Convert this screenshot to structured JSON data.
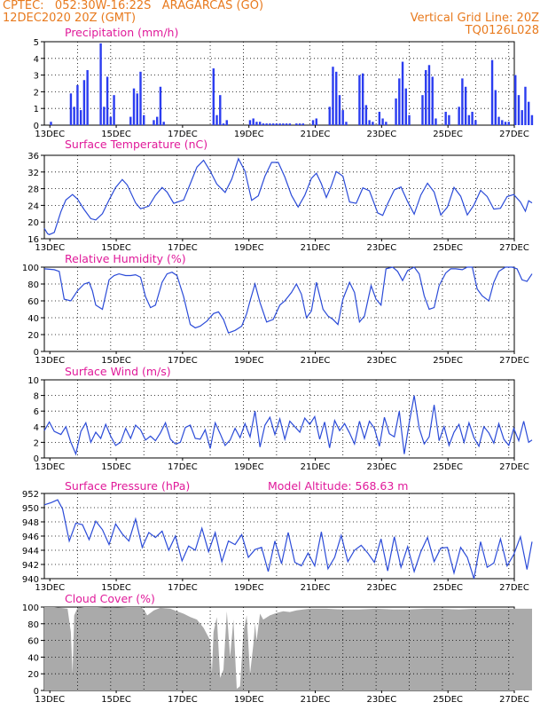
{
  "header": {
    "line1_left": "CPTEC:   052:30W-16:22S   ARAGARCAS (GO)",
    "line2_left": "12DEC2020 20Z (GMT)",
    "line1_right": "Vertical Grid Line: 20Z",
    "line2_right": "TQ0126L028",
    "text_color": "#e87a1e",
    "title_color": "#e01a9a",
    "line_color": "#2b4bd8",
    "bar_color": "#2b3df0",
    "cloud_color": "#aaaaaa"
  },
  "x_axis": {
    "range": [
      "2020-12-12 20Z",
      "2020-12-27 00Z"
    ],
    "ticks": [
      "13DEC",
      "15DEC",
      "17DEC",
      "19DEC",
      "21DEC",
      "23DEC",
      "25DEC",
      "27DEC"
    ]
  },
  "chart_data": [
    {
      "type": "bar",
      "title": "Precipitation (mm/h)",
      "ylim": [
        0,
        5
      ],
      "yticks": [
        "0",
        "1",
        "2",
        "3",
        "4",
        "5"
      ],
      "x_days": [
        0.2,
        0.8,
        0.9,
        1.0,
        1.1,
        1.2,
        1.3,
        1.7,
        1.8,
        1.9,
        2.0,
        2.1,
        2.6,
        2.7,
        2.8,
        2.9,
        3.0,
        3.3,
        3.4,
        3.5,
        3.6,
        5.1,
        5.2,
        5.3,
        5.4,
        5.5,
        6.2,
        6.3,
        6.4,
        6.5,
        6.6,
        6.7,
        6.8,
        6.9,
        7.0,
        7.1,
        7.2,
        7.3,
        7.4,
        7.6,
        7.7,
        7.8,
        8.1,
        8.2,
        8.6,
        8.7,
        8.8,
        8.9,
        9.0,
        9.1,
        9.5,
        9.6,
        9.7,
        9.8,
        9.9,
        10.1,
        10.2,
        10.3,
        10.6,
        10.7,
        10.8,
        10.9,
        11.0,
        11.4,
        11.5,
        11.6,
        11.7,
        11.8,
        12.1,
        12.2,
        12.5,
        12.6,
        12.7,
        12.8,
        12.9,
        13.0,
        13.5,
        13.6,
        13.7,
        13.8,
        13.9,
        14.0,
        14.2,
        14.3,
        14.4,
        14.5,
        14.6,
        14.7
      ],
      "values": [
        0.2,
        1.9,
        1.1,
        2.4,
        0.9,
        2.7,
        3.3,
        4.9,
        1.1,
        2.9,
        0.5,
        1.8,
        0.5,
        2.2,
        1.9,
        3.2,
        0.6,
        0.3,
        0.5,
        2.3,
        0.2,
        3.4,
        0.6,
        1.8,
        0.1,
        0.3,
        0.3,
        0.4,
        0.2,
        0.2,
        0.1,
        0.1,
        0.1,
        0.1,
        0.1,
        0.1,
        0.1,
        0.1,
        0.1,
        0.1,
        0.1,
        0.1,
        0.3,
        0.4,
        1.1,
        3.5,
        3.2,
        1.8,
        0.9,
        0.2,
        3.0,
        3.1,
        1.2,
        0.3,
        0.2,
        0.8,
        0.4,
        0.2,
        1.6,
        2.8,
        3.8,
        2.2,
        0.6,
        1.8,
        3.3,
        3.6,
        2.9,
        0.4,
        0.8,
        0.6,
        1.1,
        2.8,
        2.3,
        0.6,
        0.8,
        0.3,
        3.9,
        2.1,
        0.5,
        0.3,
        0.2,
        0.2,
        3.0,
        1.8,
        0.9,
        2.3,
        1.4,
        0.6
      ]
    },
    {
      "type": "line",
      "title": "Surface Temperature (nC)",
      "ylim": [
        16,
        36
      ],
      "yticks": [
        "16",
        "20",
        "24",
        "28",
        "32",
        "36"
      ],
      "x_days": [
        0.0,
        0.1,
        0.15,
        0.3,
        0.5,
        0.65,
        0.85,
        1.0,
        1.2,
        1.4,
        1.55,
        1.75,
        1.95,
        2.15,
        2.35,
        2.5,
        2.75,
        2.9,
        3.15,
        3.35,
        3.55,
        3.7,
        3.9,
        4.2,
        4.4,
        4.6,
        4.8,
        5.0,
        5.2,
        5.45,
        5.65,
        5.85,
        6.05,
        6.25,
        6.45,
        6.65,
        6.85,
        7.05,
        7.25,
        7.45,
        7.65,
        7.85,
        8.05,
        8.2,
        8.35,
        8.5,
        8.65,
        8.8,
        9.0,
        9.2,
        9.4,
        9.6,
        9.8,
        10.05,
        10.2,
        10.35,
        10.55,
        10.75,
        10.95,
        11.15,
        11.35,
        11.55,
        11.75,
        11.95,
        12.15,
        12.35,
        12.55,
        12.75,
        12.95,
        13.15,
        13.35,
        13.55,
        13.75,
        13.95,
        14.15,
        14.35,
        14.5,
        14.6,
        14.7
      ],
      "values": [
        18.5,
        17.2,
        17,
        17.5,
        22.5,
        25.3,
        26.6,
        25.5,
        23,
        20.8,
        20.5,
        22,
        25.3,
        28.3,
        30.2,
        28.9,
        24.6,
        23.2,
        23.8,
        26.4,
        28.3,
        27.2,
        24.5,
        25.3,
        29.2,
        33.2,
        34.8,
        32.2,
        29.1,
        27.1,
        30.3,
        35.2,
        32.2,
        25.2,
        26.3,
        31,
        34.3,
        34.3,
        30.8,
        26.4,
        23.6,
        26.4,
        30.5,
        31.7,
        29.2,
        25.9,
        28.7,
        32.1,
        31,
        24.8,
        24.5,
        28.2,
        27.5,
        22.2,
        21.6,
        24.4,
        27.7,
        28.4,
        24.9,
        21.9,
        26.5,
        29.3,
        27.2,
        21.7,
        23.6,
        28.3,
        26.2,
        21.7,
        24.1,
        27.6,
        26.1,
        23.1,
        23.3,
        26.1,
        26.6,
        24.8,
        22.6,
        25.1,
        24.6
      ]
    },
    {
      "type": "line",
      "title": "Relative Humidity (%)",
      "ylim": [
        0,
        100
      ],
      "yticks": [
        "0",
        "20",
        "40",
        "60",
        "80",
        "100"
      ],
      "x_days": [
        0.0,
        0.3,
        0.45,
        0.6,
        0.8,
        1.0,
        1.2,
        1.35,
        1.45,
        1.55,
        1.75,
        1.95,
        2.1,
        2.25,
        2.45,
        2.6,
        2.75,
        2.9,
        3.05,
        3.2,
        3.35,
        3.55,
        3.7,
        3.85,
        4.0,
        4.2,
        4.4,
        4.55,
        4.7,
        4.9,
        5.1,
        5.25,
        5.4,
        5.55,
        5.75,
        5.95,
        6.1,
        6.2,
        6.35,
        6.5,
        6.7,
        6.9,
        7.1,
        7.25,
        7.45,
        7.6,
        7.75,
        7.9,
        8.05,
        8.2,
        8.4,
        8.55,
        8.7,
        8.85,
        9.0,
        9.2,
        9.35,
        9.5,
        9.65,
        9.85,
        10.0,
        10.15,
        10.3,
        10.5,
        10.65,
        10.8,
        10.95,
        11.15,
        11.3,
        11.45,
        11.6,
        11.75,
        11.9,
        12.1,
        12.25,
        12.4,
        12.6,
        12.75,
        12.9,
        13.05,
        13.2,
        13.4,
        13.55,
        13.7,
        13.9,
        14.1,
        14.25,
        14.4,
        14.55,
        14.7
      ],
      "values": [
        98,
        97,
        95,
        62,
        60,
        72,
        80,
        82,
        72,
        55,
        50,
        85,
        90,
        92,
        90,
        90,
        91,
        88,
        65,
        52,
        55,
        82,
        92,
        94,
        90,
        65,
        32,
        28,
        30,
        36,
        45,
        47,
        38,
        22,
        25,
        30,
        45,
        60,
        80,
        58,
        35,
        38,
        55,
        60,
        70,
        80,
        68,
        40,
        48,
        82,
        50,
        42,
        38,
        32,
        62,
        82,
        70,
        35,
        42,
        78,
        62,
        55,
        98,
        100,
        95,
        84,
        96,
        100,
        92,
        66,
        50,
        52,
        78,
        93,
        98,
        98,
        97,
        100,
        100,
        74,
        66,
        60,
        82,
        95,
        100,
        100,
        98,
        85,
        83,
        92
      ]
    },
    {
      "type": "line",
      "title": "Surface Wind (m/s)",
      "ylim": [
        0,
        10
      ],
      "yticks": [
        "0",
        "2",
        "4",
        "6",
        "8",
        "10"
      ],
      "x_days": [
        0.0,
        0.15,
        0.3,
        0.5,
        0.65,
        0.8,
        0.95,
        1.1,
        1.25,
        1.4,
        1.55,
        1.7,
        1.85,
        2.0,
        2.15,
        2.3,
        2.45,
        2.6,
        2.75,
        2.9,
        3.05,
        3.2,
        3.35,
        3.5,
        3.65,
        3.8,
        3.95,
        4.1,
        4.25,
        4.4,
        4.55,
        4.7,
        4.85,
        5.0,
        5.15,
        5.3,
        5.45,
        5.6,
        5.75,
        5.9,
        6.05,
        6.2,
        6.35,
        6.5,
        6.65,
        6.8,
        6.95,
        7.1,
        7.25,
        7.4,
        7.55,
        7.7,
        7.85,
        8.0,
        8.15,
        8.3,
        8.45,
        8.6,
        8.75,
        8.9,
        9.05,
        9.2,
        9.35,
        9.5,
        9.65,
        9.8,
        9.95,
        10.1,
        10.25,
        10.4,
        10.55,
        10.7,
        10.85,
        11.0,
        11.15,
        11.3,
        11.45,
        11.6,
        11.75,
        11.9,
        12.05,
        12.2,
        12.35,
        12.5,
        12.65,
        12.8,
        12.95,
        13.1,
        13.25,
        13.4,
        13.55,
        13.7,
        13.85,
        14.0,
        14.15,
        14.3,
        14.45,
        14.6,
        14.7
      ],
      "values": [
        3.5,
        4.6,
        3.4,
        3.0,
        4.0,
        2.0,
        0.5,
        3.4,
        4.5,
        2.0,
        3.3,
        2.5,
        4.3,
        2.8,
        1.6,
        2.0,
        3.8,
        2.5,
        4.2,
        3.6,
        2.3,
        2.8,
        2.2,
        3.2,
        4.5,
        2.4,
        1.8,
        2.0,
        3.9,
        4.2,
        2.5,
        2.4,
        3.6,
        1.2,
        4.5,
        3.1,
        1.6,
        2.3,
        3.8,
        2.6,
        4.4,
        2.7,
        6.0,
        1.4,
        4.2,
        5.2,
        3.0,
        5.0,
        2.4,
        4.7,
        4.0,
        3.3,
        5.1,
        4.3,
        5.3,
        2.4,
        4.6,
        1.3,
        4.8,
        3.5,
        4.4,
        3.2,
        1.8,
        4.7,
        2.5,
        4.7,
        3.8,
        1.5,
        5.2,
        3.1,
        2.7,
        6.0,
        0.5,
        4.5,
        8.0,
        3.8,
        1.8,
        2.7,
        6.8,
        2.2,
        4.0,
        1.6,
        3.3,
        4.3,
        2.0,
        4.5,
        2.6,
        1.5,
        4.0,
        3.2,
        1.9,
        4.4,
        2.4,
        1.6,
        3.8,
        2.2,
        4.7,
        2.0,
        2.3
      ]
    },
    {
      "type": "line",
      "title": "Surface Pressure (hPa)",
      "annotation": "Model Altitude: 568.63 m",
      "ylim": [
        940,
        952
      ],
      "yticks": [
        "940",
        "942",
        "944",
        "946",
        "948",
        "950",
        "952"
      ],
      "x_days": [
        0.0,
        0.2,
        0.4,
        0.55,
        0.75,
        0.95,
        1.15,
        1.35,
        1.55,
        1.75,
        1.95,
        2.15,
        2.35,
        2.55,
        2.75,
        2.95,
        3.15,
        3.35,
        3.55,
        3.75,
        3.95,
        4.15,
        4.35,
        4.55,
        4.75,
        4.95,
        5.15,
        5.35,
        5.55,
        5.75,
        5.95,
        6.15,
        6.35,
        6.55,
        6.75,
        6.95,
        7.15,
        7.35,
        7.55,
        7.75,
        7.95,
        8.15,
        8.35,
        8.55,
        8.75,
        8.95,
        9.15,
        9.35,
        9.55,
        9.75,
        9.95,
        10.15,
        10.35,
        10.55,
        10.75,
        10.95,
        11.15,
        11.35,
        11.55,
        11.75,
        11.95,
        12.15,
        12.35,
        12.55,
        12.75,
        12.95,
        13.15,
        13.35,
        13.55,
        13.75,
        13.95,
        14.15,
        14.35,
        14.55,
        14.7
      ],
      "values": [
        950.4,
        950.7,
        951.1,
        949.8,
        945.3,
        947.8,
        947.6,
        945.5,
        948.1,
        946.9,
        944.8,
        947.7,
        946.3,
        945.3,
        948.4,
        944.4,
        946.5,
        945.8,
        946.7,
        944.0,
        946.0,
        942.5,
        944.6,
        944.0,
        947.1,
        943.8,
        946.5,
        942.4,
        945.3,
        944.8,
        946.2,
        943.0,
        944.1,
        944.4,
        941.0,
        945.3,
        942.1,
        946.5,
        942.3,
        941.8,
        943.6,
        941.8,
        946.6,
        941.4,
        943.0,
        946.1,
        942.4,
        944.0,
        944.7,
        943.6,
        942.3,
        945.6,
        941.1,
        945.9,
        941.6,
        944.5,
        941.0,
        943.8,
        945.8,
        942.4,
        944.3,
        944.4,
        940.8,
        944.4,
        943.0,
        940.0,
        945.2,
        941.6,
        942.2,
        945.6,
        941.8,
        943.4,
        945.9,
        941.3,
        945.2
      ]
    },
    {
      "type": "area",
      "title": "Cloud Cover (%)",
      "ylim": [
        0,
        100
      ],
      "yticks": [
        "0",
        "20",
        "40",
        "60",
        "80",
        "100"
      ],
      "x_days": [
        0.0,
        0.3,
        0.5,
        0.7,
        0.8,
        0.85,
        0.9,
        1.0,
        1.2,
        1.6,
        2.0,
        2.5,
        2.9,
        3.0,
        3.1,
        3.3,
        3.5,
        3.8,
        4.0,
        4.2,
        4.4,
        4.6,
        4.8,
        5.0,
        5.05,
        5.1,
        5.2,
        5.3,
        5.4,
        5.5,
        5.6,
        5.7,
        5.8,
        5.9,
        6.0,
        6.1,
        6.2,
        6.3,
        6.35,
        6.4,
        6.5,
        6.6,
        6.8,
        7.0,
        7.2,
        7.4,
        7.6,
        7.8,
        8.0,
        8.5,
        9.0,
        9.5,
        10.0,
        10.5,
        11.0,
        11.5,
        12.0,
        12.5,
        13.0,
        13.5,
        14.0,
        14.7
      ],
      "values": [
        100,
        100,
        99,
        98,
        70,
        20,
        90,
        99,
        100,
        100,
        99,
        100,
        100,
        97,
        90,
        96,
        99,
        98,
        95,
        92,
        88,
        85,
        75,
        60,
        20,
        70,
        88,
        15,
        25,
        95,
        40,
        85,
        2,
        5,
        70,
        90,
        20,
        55,
        80,
        60,
        92,
        85,
        90,
        93,
        95,
        94,
        96,
        97,
        98,
        98,
        97,
        97,
        98,
        97,
        97,
        98,
        98,
        97,
        98,
        98,
        98,
        98
      ]
    }
  ]
}
